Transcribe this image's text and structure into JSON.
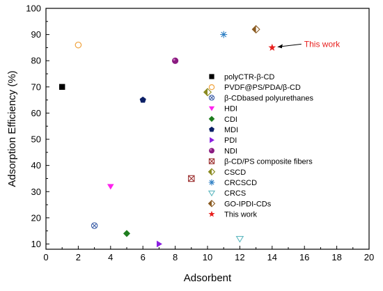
{
  "chart_data": {
    "type": "scatter",
    "xlabel": "Adsorbent",
    "ylabel": "Adsorption Efficiency (%)",
    "xlim": [
      0,
      20
    ],
    "ylim": [
      8,
      100
    ],
    "xticks": [
      0,
      2,
      4,
      6,
      8,
      10,
      12,
      14,
      16,
      18,
      20
    ],
    "yticks": [
      10,
      20,
      30,
      40,
      50,
      60,
      70,
      80,
      90,
      100
    ],
    "grid": false,
    "legend_position": "right",
    "series": [
      {
        "name": "polyCTR-β-CD",
        "marker": "square-filled",
        "color": "#000000",
        "x": [
          1
        ],
        "y": [
          70
        ]
      },
      {
        "name": "PVDF@PS/PDA/β-CD",
        "marker": "circle-open",
        "color": "#f0a23c",
        "x": [
          2
        ],
        "y": [
          86
        ]
      },
      {
        "name": "β-CDbased polyurethanes",
        "marker": "circle-x",
        "color": "#3d5fa8",
        "x": [
          3
        ],
        "y": [
          17
        ]
      },
      {
        "name": "HDI",
        "marker": "triangle-down-filled",
        "color": "#ff22ee",
        "x": [
          4
        ],
        "y": [
          32
        ]
      },
      {
        "name": "CDI",
        "marker": "diamond-filled",
        "color": "#1e7d1e",
        "x": [
          5
        ],
        "y": [
          14
        ]
      },
      {
        "name": "MDI",
        "marker": "pentagon-filled",
        "color": "#0b1f66",
        "x": [
          6
        ],
        "y": [
          65
        ]
      },
      {
        "name": "PDI",
        "marker": "triangle-right-filled",
        "color": "#8a1ee0",
        "x": [
          7
        ],
        "y": [
          10
        ]
      },
      {
        "name": "NDI",
        "marker": "sphere",
        "color": "#8a1a80",
        "x": [
          8
        ],
        "y": [
          80
        ]
      },
      {
        "name": "β-CD/PS composite fibers",
        "marker": "square-x",
        "color": "#9c3030",
        "x": [
          9
        ],
        "y": [
          35
        ]
      },
      {
        "name": "CSCD",
        "marker": "diamond-half",
        "color": "#8a8a20",
        "x": [
          10
        ],
        "y": [
          68
        ]
      },
      {
        "name": "CRCSCD",
        "marker": "asterisk",
        "color": "#2e7fc4",
        "x": [
          11
        ],
        "y": [
          90
        ]
      },
      {
        "name": "CRCS",
        "marker": "triangle-down-open",
        "color": "#5fb8c0",
        "x": [
          12
        ],
        "y": [
          12
        ]
      },
      {
        "name": "GO-IPDI-CDs",
        "marker": "diamond-half",
        "color": "#8a5a20",
        "x": [
          13
        ],
        "y": [
          92
        ]
      },
      {
        "name": "This work",
        "marker": "star-filled",
        "color": "#e8201e",
        "x": [
          14
        ],
        "y": [
          85
        ]
      }
    ],
    "annotations": [
      {
        "text": "This work",
        "target_x": 14,
        "target_y": 85,
        "color": "#e8201e"
      }
    ]
  }
}
